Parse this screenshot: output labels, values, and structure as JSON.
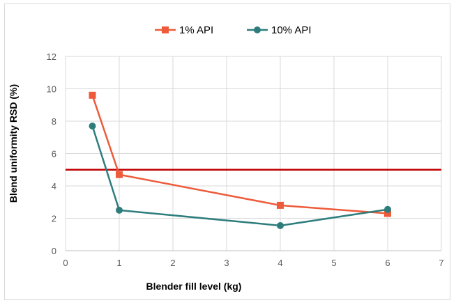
{
  "chart_data": {
    "type": "line",
    "xlabel": "Blender fill level (kg)",
    "ylabel": "Blend uniformity RSD (%)",
    "xlim": [
      0,
      7
    ],
    "ylim": [
      0,
      12
    ],
    "x_ticks": [
      0,
      1,
      2,
      3,
      4,
      5,
      6,
      7
    ],
    "y_ticks": [
      0,
      2,
      4,
      6,
      8,
      10,
      12
    ],
    "grid": true,
    "legend_position": "top",
    "series": [
      {
        "name": "1% API",
        "color": "#ed5b3b",
        "marker": "square",
        "x": [
          0.5,
          1,
          4,
          6
        ],
        "y": [
          9.6,
          4.7,
          2.8,
          2.3
        ]
      },
      {
        "name": "10% API",
        "color": "#2e7d7d",
        "marker": "circle",
        "x": [
          0.5,
          1,
          4,
          6
        ],
        "y": [
          7.7,
          2.5,
          1.55,
          2.55
        ]
      }
    ],
    "reference_line": {
      "y": 5,
      "color": "#c00000"
    }
  }
}
